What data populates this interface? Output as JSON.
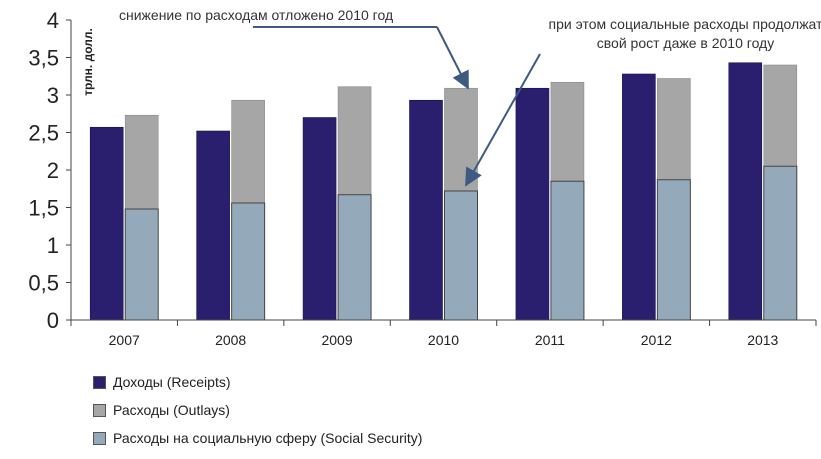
{
  "chart_data": {
    "type": "bar",
    "categories": [
      "2007",
      "2008",
      "2009",
      "2010",
      "2011",
      "2012",
      "2013"
    ],
    "ylabel": "трлн. долл.",
    "ylim": [
      0,
      4
    ],
    "yticks": [
      "0",
      "0,5",
      "1",
      "1,5",
      "2",
      "2,5",
      "3",
      "3,5",
      "4"
    ],
    "grid": false,
    "legend_position": "bottom-left",
    "series": [
      {
        "name": "Доходы (Receipts)",
        "color": "#2a1f6e",
        "values": [
          2.57,
          2.52,
          2.7,
          2.93,
          3.09,
          3.28,
          3.43
        ],
        "stack": "a"
      },
      {
        "name": "Расходы на социальную сферу (Social Security)",
        "color": "#94aabb",
        "values": [
          1.48,
          1.56,
          1.67,
          1.72,
          1.85,
          1.87,
          2.05
        ],
        "stack": "b"
      },
      {
        "name": "Расходы (Outlays)",
        "color": "#a6a6a6",
        "values": [
          2.73,
          2.93,
          3.11,
          3.09,
          3.17,
          3.22,
          3.4
        ],
        "stack": "b",
        "total": true
      }
    ],
    "legend": [
      {
        "label": "Доходы (Receipts)",
        "color": "#2a1f6e"
      },
      {
        "label": "Расходы (Outlays)",
        "color": "#a6a6a6"
      },
      {
        "label": "Расходы на социальную сферу (Social Security)",
        "color": "#94aabb"
      }
    ],
    "annotations": [
      {
        "text": "снижение по расходам отложено 2010 год"
      },
      {
        "text": "при этом социальные расходы продолжат свой рост даже в 2010 году"
      }
    ]
  }
}
